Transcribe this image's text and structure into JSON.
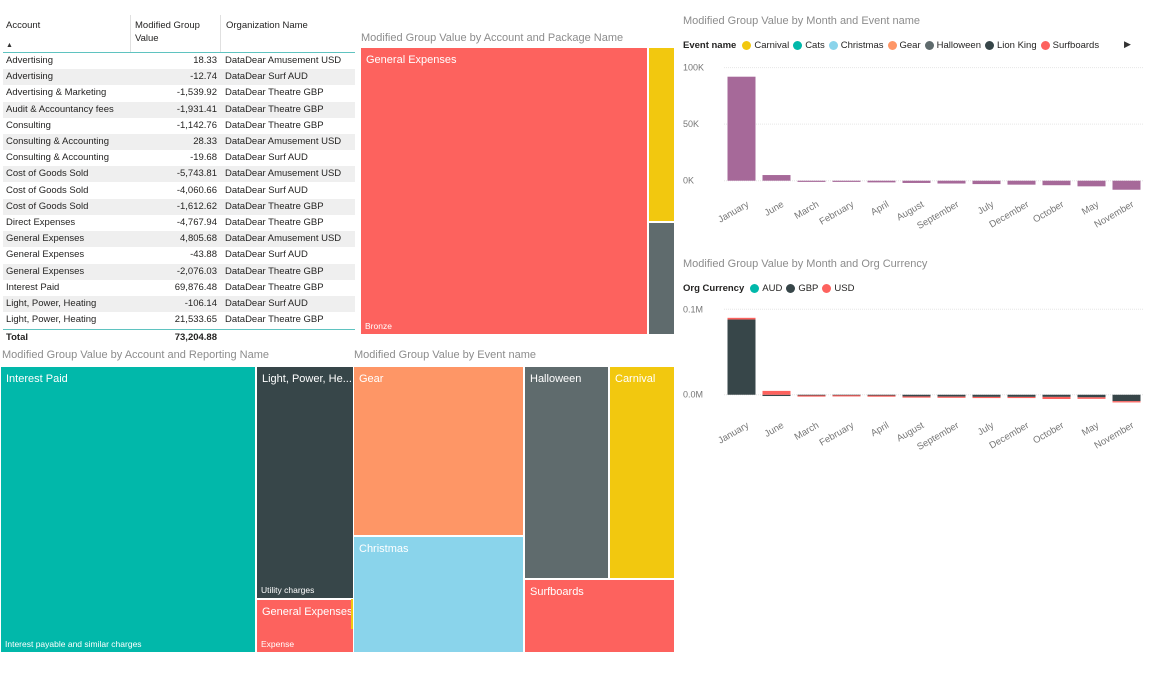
{
  "table": {
    "headers": {
      "account": "Account",
      "value_line1": "Modified Group",
      "value_line2": "Value",
      "org": "Organization Name"
    },
    "sort_indicator": "▲",
    "rows": [
      {
        "account": "Advertising",
        "value": "18.33",
        "org": "DataDear Amusement USD"
      },
      {
        "account": "Advertising",
        "value": "-12.74",
        "org": "DataDear Surf AUD"
      },
      {
        "account": "Advertising & Marketing",
        "value": "-1,539.92",
        "org": "DataDear Theatre GBP"
      },
      {
        "account": "Audit & Accountancy fees",
        "value": "-1,931.41",
        "org": "DataDear Theatre GBP"
      },
      {
        "account": "Consulting",
        "value": "-1,142.76",
        "org": "DataDear Theatre GBP"
      },
      {
        "account": "Consulting & Accounting",
        "value": "28.33",
        "org": "DataDear Amusement USD"
      },
      {
        "account": "Consulting & Accounting",
        "value": "-19.68",
        "org": "DataDear Surf AUD"
      },
      {
        "account": "Cost of Goods Sold",
        "value": "-5,743.81",
        "org": "DataDear Amusement USD"
      },
      {
        "account": "Cost of Goods Sold",
        "value": "-4,060.66",
        "org": "DataDear Surf AUD"
      },
      {
        "account": "Cost of Goods Sold",
        "value": "-1,612.62",
        "org": "DataDear Theatre GBP"
      },
      {
        "account": "Direct Expenses",
        "value": "-4,767.94",
        "org": "DataDear Theatre GBP"
      },
      {
        "account": "General Expenses",
        "value": "4,805.68",
        "org": "DataDear Amusement USD"
      },
      {
        "account": "General Expenses",
        "value": "-43.88",
        "org": "DataDear Surf AUD"
      },
      {
        "account": "General Expenses",
        "value": "-2,076.03",
        "org": "DataDear Theatre GBP"
      },
      {
        "account": "Interest Paid",
        "value": "69,876.48",
        "org": "DataDear Theatre GBP"
      },
      {
        "account": "Light, Power, Heating",
        "value": "-106.14",
        "org": "DataDear Surf AUD"
      },
      {
        "account": "Light, Power, Heating",
        "value": "21,533.65",
        "org": "DataDear Theatre GBP"
      }
    ],
    "total_label": "Total",
    "total_value": "73,204.88"
  },
  "treemap_package": {
    "title": "Modified Group Value by Account  and Package Name",
    "tiles": [
      {
        "label": "General Expenses",
        "sub": "Bronze",
        "color": "#fd625e"
      },
      {
        "label": "",
        "sub": "",
        "color": "#f2c80f"
      },
      {
        "label": "",
        "sub": "",
        "color": "#5f6b6d"
      }
    ]
  },
  "treemap_reporting": {
    "title": "Modified Group Value by Account  and Reporting Name",
    "tiles": [
      {
        "label": "Interest Paid",
        "sub": "Interest payable and similar charges",
        "color": "#01b8aa"
      },
      {
        "label": "Light, Power, He...",
        "sub": "Utility charges",
        "color": "#374649"
      },
      {
        "label": "General Expenses",
        "sub": "Expense",
        "color": "#fd625e"
      }
    ]
  },
  "treemap_event": {
    "title": "Modified Group Value by Event name",
    "tiles": [
      {
        "label": "Gear",
        "color": "#fe9666"
      },
      {
        "label": "Christmas",
        "color": "#8ad4eb"
      },
      {
        "label": "Halloween",
        "color": "#5f6b6d"
      },
      {
        "label": "Carnival",
        "color": "#f2c80f"
      },
      {
        "label": "Surfboards",
        "color": "#fd625e"
      }
    ]
  },
  "legend_event": {
    "title": "Event name",
    "items": [
      {
        "name": "Carnival",
        "color": "#f2c80f"
      },
      {
        "name": "Cats",
        "color": "#01b8aa"
      },
      {
        "name": "Christmas",
        "color": "#8ad4eb"
      },
      {
        "name": "Gear",
        "color": "#fe9666"
      },
      {
        "name": "Halloween",
        "color": "#5f6b6d"
      },
      {
        "name": "Lion King",
        "color": "#374649"
      },
      {
        "name": "Surfboards",
        "color": "#fd625e"
      }
    ],
    "more_icon": "play-arrow-icon"
  },
  "legend_currency": {
    "title": "Org Currency",
    "items": [
      {
        "name": "AUD",
        "color": "#01b8aa"
      },
      {
        "name": "GBP",
        "color": "#374649"
      },
      {
        "name": "USD",
        "color": "#fd625e"
      }
    ]
  },
  "chart_data": [
    {
      "type": "bar",
      "title": "Modified Group Value by Month and Event name",
      "categories": [
        "January",
        "June",
        "March",
        "February",
        "April",
        "August",
        "September",
        "July",
        "December",
        "October",
        "May",
        "November"
      ],
      "values": [
        92000,
        5000,
        -500,
        -800,
        -1500,
        -2000,
        -2500,
        -3000,
        -3500,
        -4000,
        -5000,
        -8000
      ],
      "bar_color": "#a66999",
      "yticks": [
        0,
        50000,
        100000
      ],
      "ytick_labels": [
        "0K",
        "50K",
        "100K"
      ],
      "ylim": [
        -10000,
        105000
      ],
      "grid": true,
      "legend": "top-left"
    },
    {
      "type": "bar",
      "title": "Modified Group Value by Month and Org Currency",
      "categories": [
        "January",
        "June",
        "March",
        "February",
        "April",
        "August",
        "September",
        "July",
        "December",
        "October",
        "May",
        "November"
      ],
      "series": [
        {
          "name": "AUD",
          "color": "#01b8aa",
          "values": [
            0,
            0,
            0,
            0,
            0,
            0,
            0,
            0,
            0,
            0,
            0,
            0
          ]
        },
        {
          "name": "GBP",
          "color": "#374649",
          "values": [
            88000,
            -1500,
            -800,
            -600,
            -900,
            -2000,
            -2200,
            -2500,
            -2500,
            -2500,
            -3000,
            -7500
          ]
        },
        {
          "name": "USD",
          "color": "#fd625e",
          "values": [
            2000,
            4500,
            -500,
            -600,
            -800,
            -500,
            -700,
            -800,
            -1000,
            -2500,
            -1800,
            -1500
          ]
        }
      ],
      "stacked": true,
      "yticks": [
        0,
        100000
      ],
      "ytick_labels": [
        "0.0M",
        "0.1M"
      ],
      "ylim": [
        -12000,
        105000
      ],
      "grid": true,
      "legend": "top-left"
    }
  ]
}
